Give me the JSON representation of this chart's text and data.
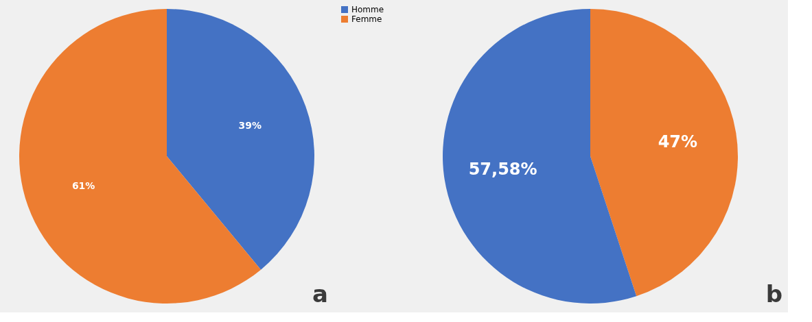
{
  "chart_data": [
    {
      "type": "pie",
      "categories": [
        "Homme",
        "Femme"
      ],
      "values": [
        39,
        61
      ],
      "colors": [
        "#4472c4",
        "#ed7d31"
      ],
      "value_labels": [
        "39%",
        "61%"
      ],
      "legend": "right",
      "annotations": [
        "a"
      ]
    },
    {
      "type": "pie",
      "categories": [
        null,
        null
      ],
      "values": [
        47,
        57.58
      ],
      "colors": [
        "#ed7d31",
        "#4472c4"
      ],
      "value_labels": [
        "47%",
        "57,58%"
      ],
      "legend": false,
      "annotations": [
        "b"
      ]
    }
  ]
}
